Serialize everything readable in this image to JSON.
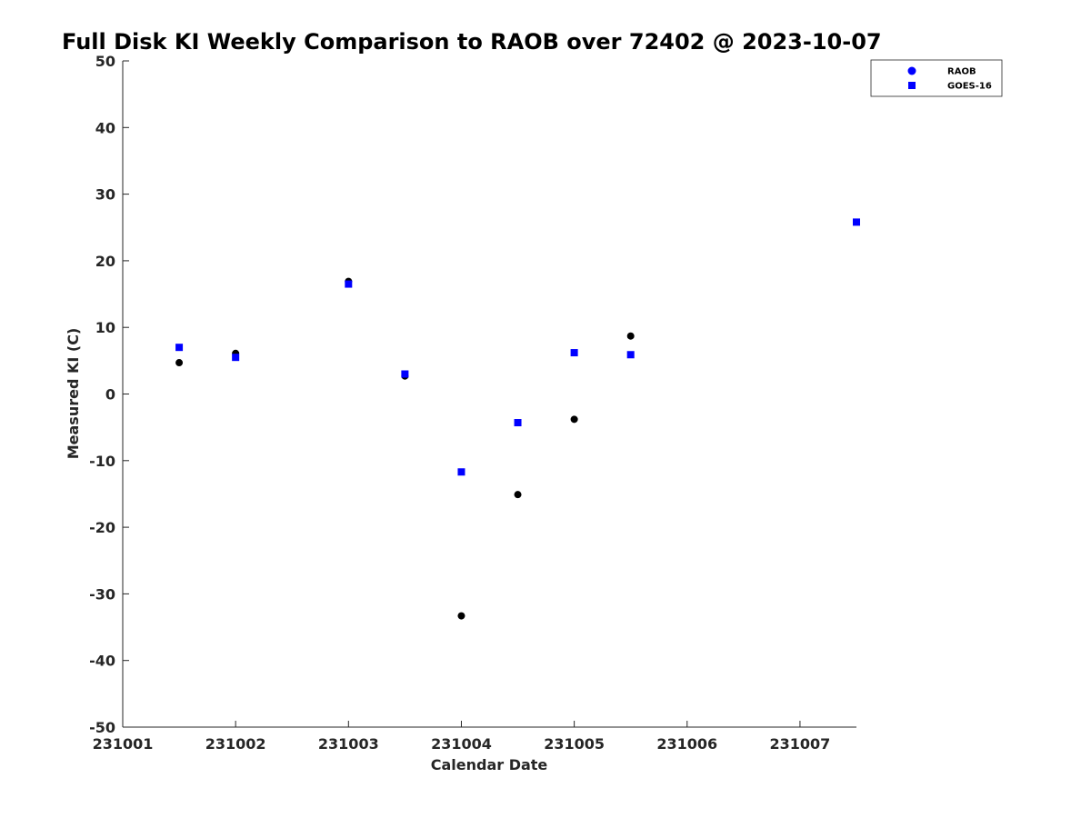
{
  "chart_data": {
    "type": "scatter",
    "title": "Full Disk KI Weekly Comparison to RAOB over 72402 @ 2023-10-07",
    "xlabel": "Calendar Date",
    "ylabel": "Measured KI (C)",
    "xlim": [
      1,
      7.5
    ],
    "ylim": [
      -50,
      50
    ],
    "x_ticks": [
      {
        "value": 1,
        "label": "231001"
      },
      {
        "value": 2,
        "label": "231002"
      },
      {
        "value": 3,
        "label": "231003"
      },
      {
        "value": 4,
        "label": "231004"
      },
      {
        "value": 5,
        "label": "231005"
      },
      {
        "value": 6,
        "label": "231006"
      },
      {
        "value": 7,
        "label": "231007"
      }
    ],
    "y_ticks": [
      50,
      40,
      30,
      20,
      10,
      0,
      -10,
      -20,
      -30,
      -40,
      -50
    ],
    "grid": false,
    "legend_position": "top-right",
    "series": [
      {
        "name": "RAOB",
        "marker": "circle",
        "color": "#000000",
        "legend_color": "#0000ff",
        "points": [
          {
            "x": 1.5,
            "y": 4.7
          },
          {
            "x": 2.0,
            "y": 6.1
          },
          {
            "x": 3.0,
            "y": 16.9
          },
          {
            "x": 3.5,
            "y": 2.7
          },
          {
            "x": 4.0,
            "y": -33.3
          },
          {
            "x": 4.5,
            "y": -15.1
          },
          {
            "x": 5.0,
            "y": -3.8
          },
          {
            "x": 5.5,
            "y": 8.7
          }
        ]
      },
      {
        "name": "GOES-16",
        "marker": "square",
        "color": "#0000ff",
        "legend_color": "#0000ff",
        "points": [
          {
            "x": 1.5,
            "y": 7.0
          },
          {
            "x": 2.0,
            "y": 5.5
          },
          {
            "x": 3.0,
            "y": 16.5
          },
          {
            "x": 3.5,
            "y": 3.0
          },
          {
            "x": 4.0,
            "y": -11.7
          },
          {
            "x": 4.5,
            "y": -4.3
          },
          {
            "x": 5.0,
            "y": 6.2
          },
          {
            "x": 5.5,
            "y": 5.9
          },
          {
            "x": 7.5,
            "y": 25.8
          }
        ]
      }
    ]
  }
}
